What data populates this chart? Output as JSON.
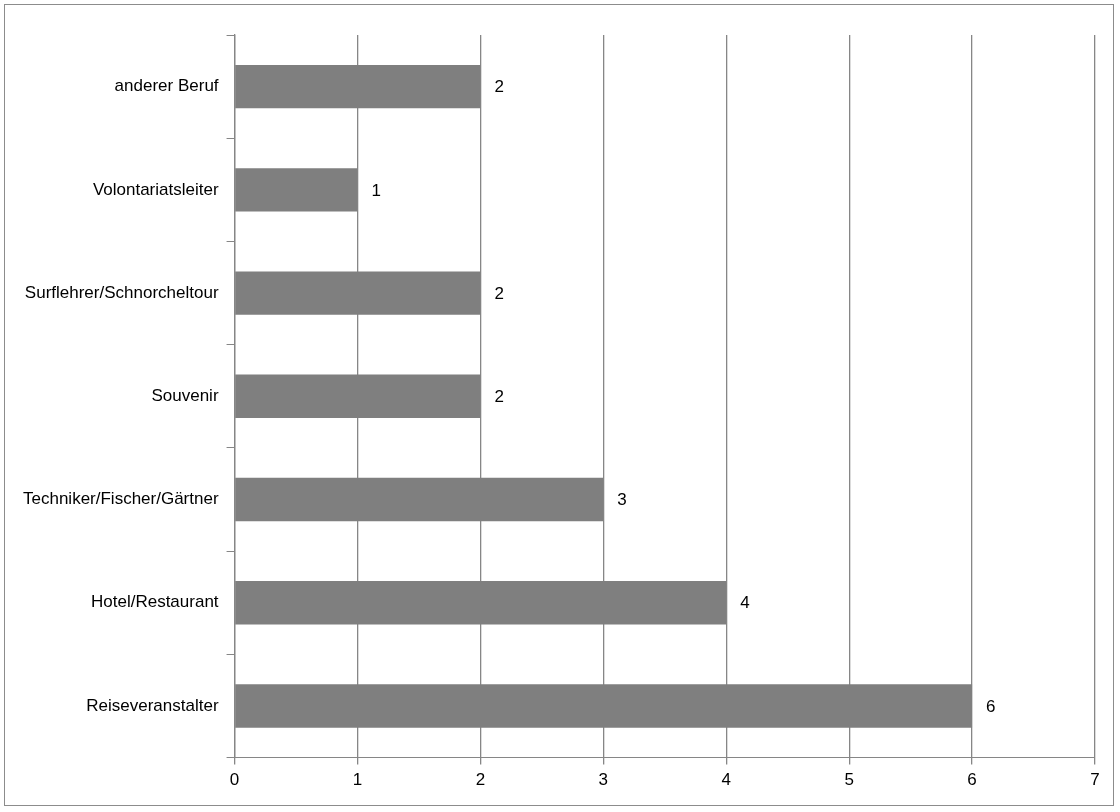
{
  "chart_data": {
    "type": "bar",
    "orientation": "horizontal",
    "categories": [
      "anderer Beruf",
      "Volontariatsleiter",
      "Surflehrer/Schnorcheltour",
      "Souvenir",
      "Techniker/Fischer/Gärtner",
      "Hotel/Restaurant",
      "Reiseveranstalter"
    ],
    "values": [
      2,
      1,
      2,
      2,
      3,
      4,
      6
    ],
    "color": "#7f7f7f",
    "xlim": [
      0,
      7
    ],
    "xticks": [
      0,
      1,
      2,
      3,
      4,
      5,
      6,
      7
    ],
    "grid": "x",
    "data_labels": true
  }
}
